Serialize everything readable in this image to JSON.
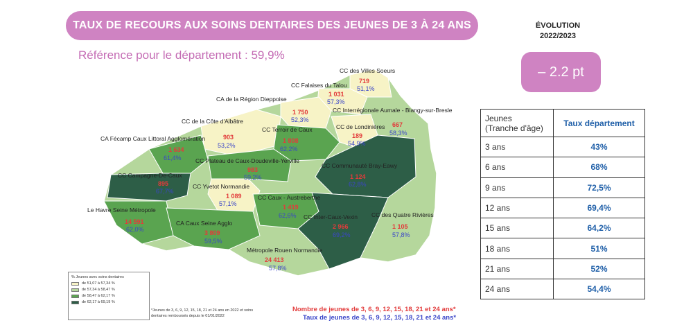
{
  "title": "TAUX DE RECOURS AUX SOINS DENTAIRES DES JEUNES DE 3 À 24 ANS",
  "reference": "Référence pour le département : 59,9%",
  "evolution": {
    "title_line1": "ÉVOLUTION",
    "title_line2": "2022/2023",
    "value": "– 2.2 pt"
  },
  "table": {
    "header_col1_line1": "Jeunes",
    "header_col1_line2": "(Tranche d'âge)",
    "header_col2": "Taux département",
    "rows": [
      {
        "age": "3 ans",
        "rate": "43%"
      },
      {
        "age": "6 ans",
        "rate": "68%"
      },
      {
        "age": "9 ans",
        "rate": "72,5%"
      },
      {
        "age": "12 ans",
        "rate": "69,4%"
      },
      {
        "age": "15 ans",
        "rate": "64,2%"
      },
      {
        "age": "18 ans",
        "rate": "51%"
      },
      {
        "age": "21 ans",
        "rate": "52%"
      },
      {
        "age": "24 ans",
        "rate": "54,4%"
      }
    ]
  },
  "map": {
    "regions": [
      {
        "name": "CC des Villes Soeurs",
        "count": "719",
        "rate": "51,1%"
      },
      {
        "name": "CC Falaises du Talou",
        "count": "1 031",
        "rate": "57,3%"
      },
      {
        "name": "CA de la Région Dieppoise",
        "count": "1 750",
        "rate": "52,3%"
      },
      {
        "name": "CC Interrégionale Aumale - Blangy-sur-Bresle",
        "count": "667",
        "rate": "58,3%"
      },
      {
        "name": "CC de Londinières",
        "count": "189",
        "rate": "54,9%"
      },
      {
        "name": "CC de la Côte d'Albâtre",
        "count": "903",
        "rate": "53,2%"
      },
      {
        "name": "CC Terroir de Caux",
        "count": "1 808",
        "rate": "62,2%"
      },
      {
        "name": "CA Fécamp Caux Littoral Agglomération",
        "count": "1 634",
        "rate": "61,4%"
      },
      {
        "name": "CC Plateau de Caux-Doudeville-Yerville",
        "count": "983",
        "rate": "59,2%"
      },
      {
        "name": "CC Communauté Bray-Eawy",
        "count": "1 124",
        "rate": "62,8%"
      },
      {
        "name": "CC Campagne-De-Caux",
        "count": "895",
        "rate": "67,7%"
      },
      {
        "name": "CC Yvetot Normandie",
        "count": "1 089",
        "rate": "57,1%"
      },
      {
        "name": "CC Caux - Austreberthe",
        "count": "1 419",
        "rate": "62,6%"
      },
      {
        "name": "Le Havre Seine Métropole",
        "count": "14 591",
        "rate": "62,0%"
      },
      {
        "name": "CC Inter-Caux-Vexin",
        "count": "2 966",
        "rate": "69,2%"
      },
      {
        "name": "CC des Quatre Rivières",
        "count": "1 105",
        "rate": "57,8%"
      },
      {
        "name": "CA Caux Seine Agglo",
        "count": "3 809",
        "rate": "59,5%"
      },
      {
        "name": "Métropole Rouen Normandie",
        "count": "24 413",
        "rate": "57,8%"
      }
    ],
    "colors": {
      "class1": "#f7f3c6",
      "class2": "#b5d79c",
      "class3": "#5aa450",
      "class4": "#2d5e47",
      "outline": "#ffffff"
    }
  },
  "legend": {
    "title": "% Jeunes avec soins dentaires",
    "items": [
      {
        "label": "de 51,07 à 57,34 %",
        "color": "#f7f3c6"
      },
      {
        "label": "de 57,34 à 58,47 %",
        "color": "#b5d79c"
      },
      {
        "label": "de 58,47 à 62,17 %",
        "color": "#5aa450"
      },
      {
        "label": "de 62,17 à 69,19 %",
        "color": "#2d5e47"
      }
    ]
  },
  "note": "*Jeunes de 3, 6, 9, 12, 15, 18, 21 et 24 ans en 2022 et soins dentaires remboursés depuis le 01/01/2022",
  "footer": {
    "line1": "Nombre de jeunes de 3, 6, 9, 12, 15, 18, 21 et 24 ans*",
    "line2": "Taux de jeunes de 3, 6, 9, 12, 15, 18, 21 et 24 ans*"
  }
}
